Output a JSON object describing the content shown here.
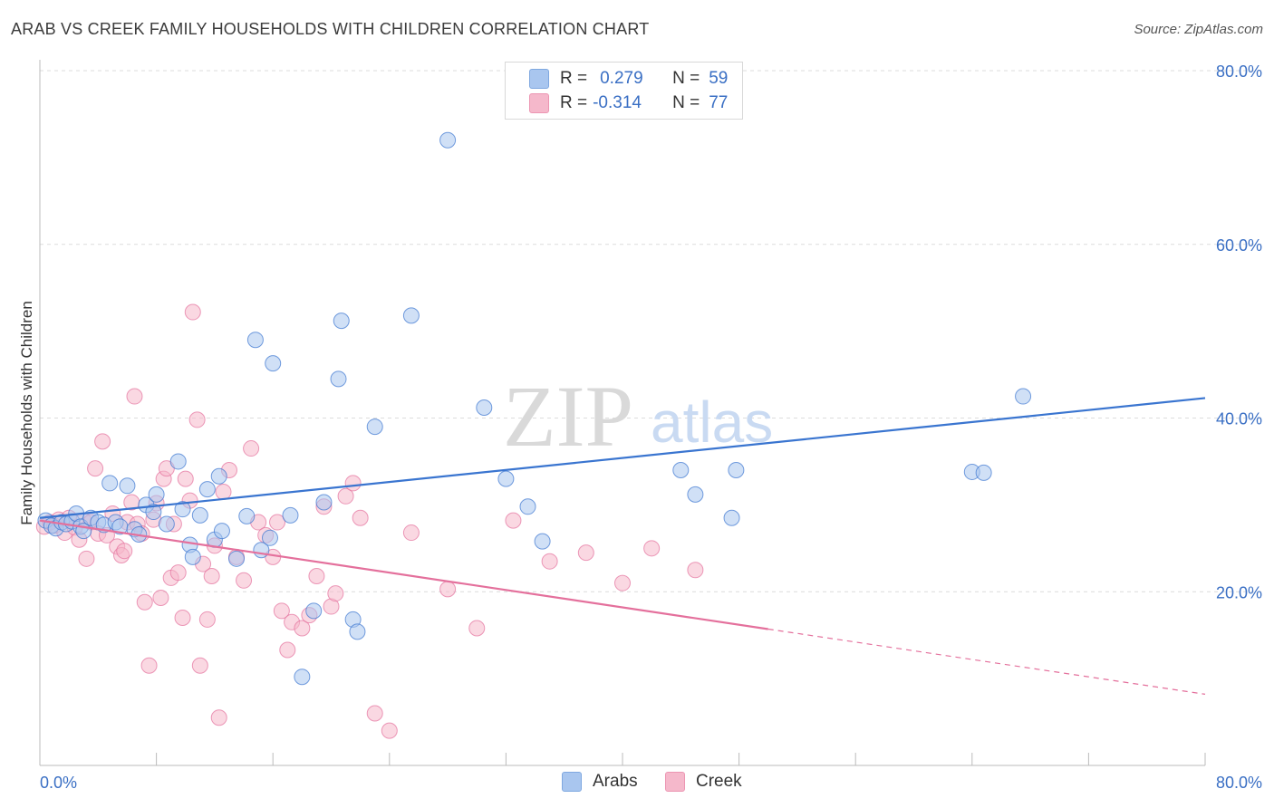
{
  "header": {
    "title": "ARAB VS CREEK FAMILY HOUSEHOLDS WITH CHILDREN CORRELATION CHART",
    "source": "Source: ZipAtlas.com"
  },
  "watermark": {
    "zip": "ZIP",
    "atlas": "atlas"
  },
  "legend": {
    "arabs": {
      "r_label": "R =",
      "r_value": "0.279",
      "n_label": "N =",
      "n_value": "59",
      "color": "#a9c6ef"
    },
    "creek": {
      "r_label": "R =",
      "r_value": "-0.314",
      "n_label": "N =",
      "n_value": "77",
      "color": "#f5b8cb"
    }
  },
  "bottom_legend": {
    "arabs": "Arabs",
    "creek": "Creek"
  },
  "chart_data": {
    "type": "scatter",
    "xlabel": "",
    "ylabel": "Family Households with Children",
    "xlim": [
      0,
      80
    ],
    "ylim": [
      0,
      80
    ],
    "x_tick_labels": [
      "0.0%",
      "80.0%"
    ],
    "y_tick_labels": [
      "20.0%",
      "40.0%",
      "60.0%",
      "80.0%"
    ],
    "y_ticks": [
      20,
      40,
      60,
      80
    ],
    "grid": "horizontal dashed",
    "legend_position": "top-center",
    "series": [
      {
        "name": "Arabs",
        "color": "#3a75d0",
        "fill": "#a9c6ef",
        "trend": {
          "x0": 0,
          "y0": 28.5,
          "x1": 80,
          "y1": 42.3,
          "dashed_from": null
        },
        "points": [
          [
            0.4,
            28.2
          ],
          [
            0.8,
            27.6
          ],
          [
            1.1,
            27.3
          ],
          [
            1.5,
            28.0
          ],
          [
            1.8,
            27.8
          ],
          [
            2.2,
            28.1
          ],
          [
            2.5,
            29.0
          ],
          [
            2.8,
            27.5
          ],
          [
            3.0,
            27.0
          ],
          [
            3.5,
            28.5
          ],
          [
            4.0,
            28.0
          ],
          [
            4.4,
            27.7
          ],
          [
            4.8,
            32.5
          ],
          [
            5.2,
            28.0
          ],
          [
            5.5,
            27.5
          ],
          [
            6.0,
            32.2
          ],
          [
            6.5,
            27.2
          ],
          [
            6.8,
            26.6
          ],
          [
            7.3,
            30.0
          ],
          [
            7.8,
            29.2
          ],
          [
            8.0,
            31.2
          ],
          [
            8.7,
            27.8
          ],
          [
            9.5,
            35.0
          ],
          [
            9.8,
            29.5
          ],
          [
            10.3,
            25.4
          ],
          [
            10.5,
            24.0
          ],
          [
            11.0,
            28.8
          ],
          [
            11.5,
            31.8
          ],
          [
            12.0,
            26.0
          ],
          [
            12.3,
            33.3
          ],
          [
            12.5,
            27.0
          ],
          [
            13.5,
            23.8
          ],
          [
            14.2,
            28.7
          ],
          [
            14.8,
            49.0
          ],
          [
            15.2,
            24.8
          ],
          [
            15.8,
            26.2
          ],
          [
            16.0,
            46.3
          ],
          [
            17.2,
            28.8
          ],
          [
            18.0,
            10.2
          ],
          [
            18.8,
            17.8
          ],
          [
            19.5,
            30.3
          ],
          [
            20.5,
            44.5
          ],
          [
            20.7,
            51.2
          ],
          [
            21.5,
            16.8
          ],
          [
            21.8,
            15.4
          ],
          [
            23.0,
            39.0
          ],
          [
            25.5,
            51.8
          ],
          [
            28.0,
            72.0
          ],
          [
            30.5,
            41.2
          ],
          [
            32.0,
            33.0
          ],
          [
            33.5,
            29.8
          ],
          [
            34.5,
            25.8
          ],
          [
            44.0,
            34.0
          ],
          [
            45.0,
            31.2
          ],
          [
            47.5,
            28.5
          ],
          [
            47.8,
            34.0
          ],
          [
            64.0,
            33.8
          ],
          [
            64.8,
            33.7
          ],
          [
            67.5,
            42.5
          ]
        ]
      },
      {
        "name": "Creek",
        "color": "#e4709c",
        "fill": "#f5b8cb",
        "trend": {
          "x0": 0,
          "y0": 28.2,
          "x1": 80,
          "y1": 8.2,
          "dashed_from": 50
        },
        "points": [
          [
            0.3,
            27.5
          ],
          [
            0.7,
            28.0
          ],
          [
            1.0,
            27.6
          ],
          [
            1.3,
            28.3
          ],
          [
            1.7,
            26.8
          ],
          [
            2.0,
            28.5
          ],
          [
            2.4,
            27.4
          ],
          [
            2.7,
            26.0
          ],
          [
            3.0,
            28.2
          ],
          [
            3.2,
            23.8
          ],
          [
            3.5,
            28.0
          ],
          [
            3.8,
            34.2
          ],
          [
            4.0,
            26.7
          ],
          [
            4.3,
            37.3
          ],
          [
            4.6,
            26.5
          ],
          [
            5.0,
            29.0
          ],
          [
            5.3,
            25.2
          ],
          [
            5.6,
            24.2
          ],
          [
            5.8,
            24.7
          ],
          [
            6.0,
            28.0
          ],
          [
            6.3,
            30.3
          ],
          [
            6.5,
            42.5
          ],
          [
            6.7,
            27.8
          ],
          [
            7.0,
            26.7
          ],
          [
            7.2,
            18.8
          ],
          [
            7.5,
            11.5
          ],
          [
            7.8,
            28.3
          ],
          [
            8.0,
            30.2
          ],
          [
            8.3,
            19.3
          ],
          [
            8.5,
            33.0
          ],
          [
            8.7,
            34.2
          ],
          [
            9.0,
            21.6
          ],
          [
            9.2,
            27.8
          ],
          [
            9.5,
            22.2
          ],
          [
            9.8,
            17.0
          ],
          [
            10.0,
            33.0
          ],
          [
            10.3,
            30.5
          ],
          [
            10.5,
            52.2
          ],
          [
            10.8,
            39.8
          ],
          [
            11.0,
            11.5
          ],
          [
            11.2,
            23.2
          ],
          [
            11.5,
            16.8
          ],
          [
            11.8,
            21.8
          ],
          [
            12.0,
            25.3
          ],
          [
            12.3,
            5.5
          ],
          [
            12.6,
            31.5
          ],
          [
            13.0,
            34.0
          ],
          [
            13.5,
            24.0
          ],
          [
            14.0,
            21.3
          ],
          [
            14.5,
            36.5
          ],
          [
            15.0,
            28.0
          ],
          [
            15.5,
            26.5
          ],
          [
            16.0,
            24.0
          ],
          [
            16.3,
            28.0
          ],
          [
            16.6,
            17.8
          ],
          [
            17.0,
            13.3
          ],
          [
            17.3,
            16.5
          ],
          [
            18.0,
            15.8
          ],
          [
            18.5,
            17.3
          ],
          [
            19.0,
            21.8
          ],
          [
            19.5,
            29.8
          ],
          [
            20.0,
            18.3
          ],
          [
            20.3,
            19.8
          ],
          [
            21.0,
            31.0
          ],
          [
            21.5,
            32.5
          ],
          [
            22.0,
            28.5
          ],
          [
            23.0,
            6.0
          ],
          [
            24.0,
            4.0
          ],
          [
            25.5,
            26.8
          ],
          [
            28.0,
            20.3
          ],
          [
            30.0,
            15.8
          ],
          [
            32.5,
            28.2
          ],
          [
            35.0,
            23.5
          ],
          [
            37.5,
            24.5
          ],
          [
            40.0,
            21.0
          ],
          [
            42.0,
            25.0
          ],
          [
            45.0,
            22.5
          ]
        ]
      }
    ]
  }
}
